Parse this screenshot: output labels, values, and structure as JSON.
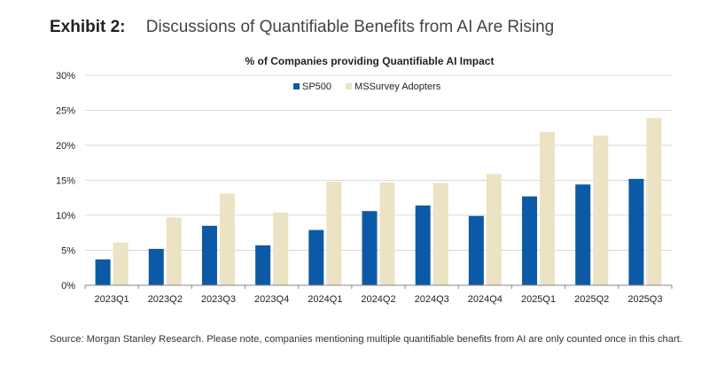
{
  "exhibit": {
    "label": "Exhibit 2:",
    "title": "Discussions of Quantifiable Benefits from AI Are Rising"
  },
  "footer": {
    "source": "Source: Morgan Stanley Research. Please note, companies mentioning multiple quantifiable benefits from AI are only counted once in this chart."
  },
  "colors": {
    "sp500": "#0c5aa6",
    "mssurvey": "#ece3c4",
    "grid": "#d9d9d9",
    "axis": "#888888"
  },
  "chart_data": {
    "type": "bar",
    "title": "% of Companies providing Quantifiable AI Impact",
    "xlabel": "",
    "ylabel": "",
    "ylim": [
      0,
      30
    ],
    "yticks": [
      0,
      5,
      10,
      15,
      20,
      25,
      30
    ],
    "ytick_labels": [
      "0%",
      "5%",
      "10%",
      "15%",
      "20%",
      "25%",
      "30%"
    ],
    "grid": true,
    "legend_position": "top-left",
    "categories": [
      "2023Q1",
      "2023Q2",
      "2023Q3",
      "2023Q4",
      "2024Q1",
      "2024Q2",
      "2024Q3",
      "2024Q4",
      "2025Q1",
      "2025Q2",
      "2025Q3"
    ],
    "series": [
      {
        "name": "SP500",
        "values": [
          3.7,
          5.2,
          8.5,
          5.7,
          7.9,
          10.6,
          11.4,
          9.9,
          12.7,
          14.4,
          15.2
        ]
      },
      {
        "name": "MSSurvey Adopters",
        "values": [
          6.1,
          9.7,
          13.1,
          10.4,
          14.8,
          14.7,
          14.6,
          15.9,
          21.9,
          21.4,
          23.9
        ]
      }
    ]
  }
}
